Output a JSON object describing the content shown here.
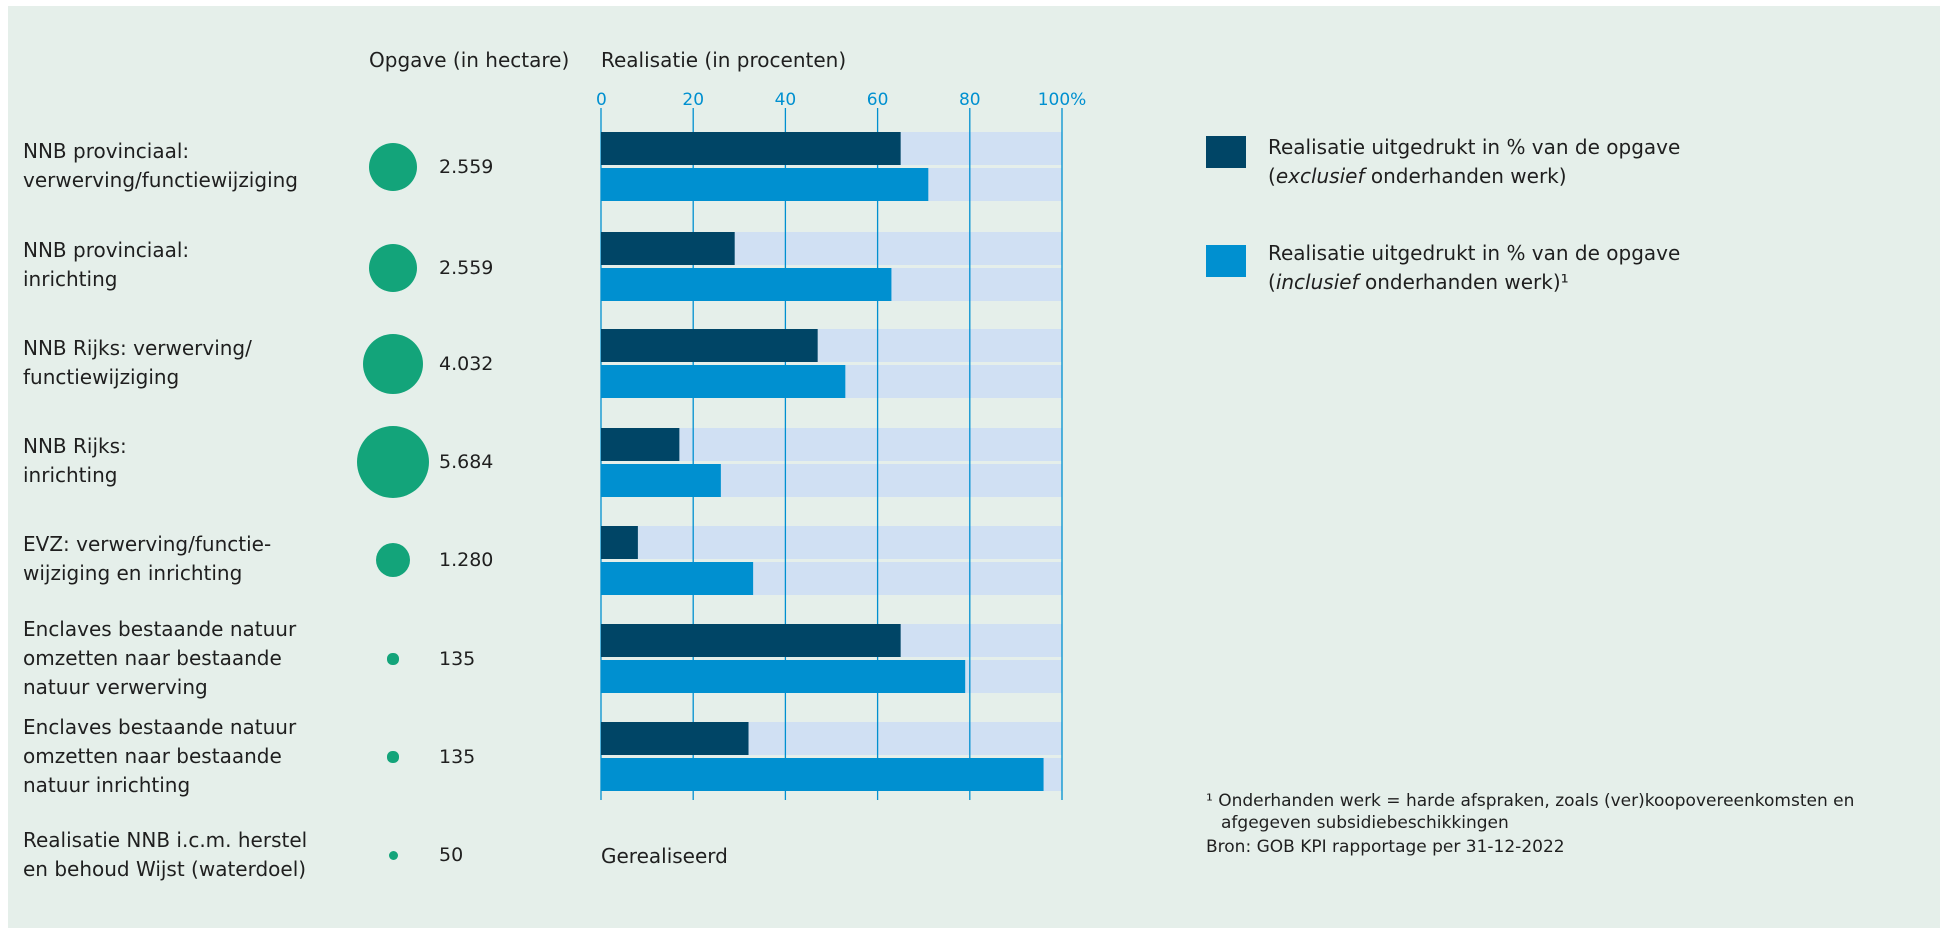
{
  "headers": {
    "opgave": "Opgave (in hectare)",
    "realisatie": "Realisatie (in procenten)"
  },
  "chart_data": {
    "type": "bar",
    "orientation": "horizontal",
    "xlim": [
      0,
      100
    ],
    "ticks": [
      "0",
      "20",
      "40",
      "60",
      "80",
      "100%"
    ],
    "tick_values": [
      0,
      20,
      40,
      60,
      80,
      100
    ],
    "grid": true,
    "categories": [
      [
        "NNB provinciaal:",
        "verwerving/functiewijziging"
      ],
      [
        "NNB provinciaal:",
        "inrichting"
      ],
      [
        "NNB Rijks: verwerving/",
        "functiewijziging"
      ],
      [
        "NNB Rijks:",
        "inrichting"
      ],
      [
        "EVZ: verwerving/functie-",
        "wijziging en inrichting"
      ],
      [
        "Enclaves bestaande natuur",
        "omzetten naar bestaande",
        "natuur verwerving"
      ],
      [
        "Enclaves bestaande natuur",
        "omzetten naar bestaande",
        "natuur inrichting"
      ],
      [
        "Realisatie NNB i.c.m. herstel",
        "en behoud Wijst (waterdoel)"
      ]
    ],
    "opgave_hectare": [
      "2.559",
      "2.559",
      "4.032",
      "5.684",
      "1.280",
      "135",
      "135",
      "50"
    ],
    "opgave_values": [
      2559,
      2559,
      4032,
      5684,
      1280,
      135,
      135,
      50
    ],
    "series": [
      {
        "name": "Realisatie uitgedrukt in % van de opgave (exclusief onderhanden werk)",
        "color": "#004566",
        "values": [
          65,
          29,
          47,
          17,
          8,
          65,
          32,
          null
        ]
      },
      {
        "name": "Realisatie uitgedrukt in % van de opgave (inclusief onderhanden werk)¹",
        "color": "#0090d0",
        "values": [
          71,
          63,
          53,
          26,
          33,
          79,
          96,
          null
        ]
      }
    ],
    "background_color": "#d0e0f3",
    "last_row_text": "Gerealiseerd",
    "legend_position": "right"
  },
  "legend": {
    "items": [
      {
        "color": "#004566",
        "line1_pre": "Realisatie uitgedrukt in % van de opgave",
        "line2_open": "(",
        "line2_em": "exclusief",
        "line2_post": " onderhanden werk)"
      },
      {
        "color": "#0090d0",
        "line1_pre": "Realisatie uitgedrukt in % van de opgave",
        "line2_open": "(",
        "line2_em": "inclusief",
        "line2_post": " onderhanden werk)¹"
      }
    ]
  },
  "footnote": {
    "line1": "¹  Onderhanden werk = harde afspraken, zoals (ver)koopovereenkomsten en",
    "line2": "afgegeven subsidiebeschikkingen",
    "source": "Bron: GOB KPI rapportage per 31-12-2022"
  },
  "colors": {
    "panel": "#e5efea",
    "circle": "#13a47a",
    "axis": "#0090d0"
  }
}
